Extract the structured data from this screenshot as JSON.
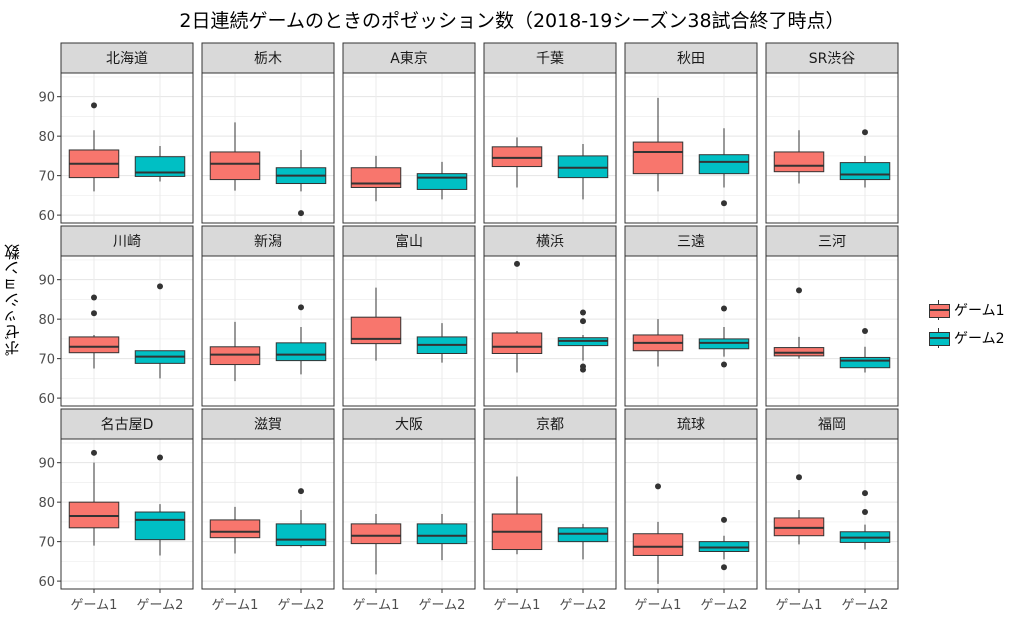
{
  "title": "2日連続ゲームのときのポゼッション数（2018-19シーズン38試合終了時点）",
  "colors": {
    "game1": "#F8766D",
    "game2": "#00BFC4"
  },
  "chart_data": {
    "type": "boxplot",
    "title": "2日連続ゲームのときのポゼッション数（2018-19シーズン38試合終了時点）",
    "xlabel": "",
    "ylabel": "ポゼッション数",
    "ylim": [
      58,
      96
    ],
    "yticks": [
      60,
      70,
      80,
      90
    ],
    "categories": [
      "ゲーム1",
      "ゲーム2"
    ],
    "legend": {
      "title": "",
      "position": "right",
      "entries": [
        "ゲーム1",
        "ゲーム2"
      ]
    },
    "facets": [
      {
        "team": "北海道",
        "boxes": [
          {
            "group": "ゲーム1",
            "min": 66,
            "q1": 69.5,
            "median": 73,
            "q3": 76.5,
            "max": 81.5,
            "outliers": [
              87.8
            ]
          },
          {
            "group": "ゲーム2",
            "min": 68.5,
            "q1": 69.8,
            "median": 70.8,
            "q3": 74.8,
            "max": 77.5,
            "outliers": []
          }
        ]
      },
      {
        "team": "栃木",
        "boxes": [
          {
            "group": "ゲーム1",
            "min": 66.2,
            "q1": 69,
            "median": 73,
            "q3": 76,
            "max": 83.5,
            "outliers": []
          },
          {
            "group": "ゲーム2",
            "min": 66,
            "q1": 68,
            "median": 70,
            "q3": 72,
            "max": 76.5,
            "outliers": [
              60.5
            ]
          }
        ]
      },
      {
        "team": "A東京",
        "boxes": [
          {
            "group": "ゲーム1",
            "min": 63.5,
            "q1": 67,
            "median": 68,
            "q3": 72,
            "max": 75,
            "outliers": []
          },
          {
            "group": "ゲーム2",
            "min": 64,
            "q1": 66.5,
            "median": 69.5,
            "q3": 70.5,
            "max": 73.5,
            "outliers": []
          }
        ]
      },
      {
        "team": "千葉",
        "boxes": [
          {
            "group": "ゲーム1",
            "min": 67,
            "q1": 72.3,
            "median": 74.5,
            "q3": 77.3,
            "max": 79.7,
            "outliers": []
          },
          {
            "group": "ゲーム2",
            "min": 64,
            "q1": 69.5,
            "median": 72,
            "q3": 75,
            "max": 78,
            "outliers": []
          }
        ]
      },
      {
        "team": "秋田",
        "boxes": [
          {
            "group": "ゲーム1",
            "min": 66,
            "q1": 70.5,
            "median": 76,
            "q3": 78.5,
            "max": 89.7,
            "outliers": []
          },
          {
            "group": "ゲーム2",
            "min": 67,
            "q1": 70.5,
            "median": 73.5,
            "q3": 75.3,
            "max": 82,
            "outliers": [
              63
            ]
          }
        ]
      },
      {
        "team": "SR渋谷",
        "boxes": [
          {
            "group": "ゲーム1",
            "min": 68,
            "q1": 71,
            "median": 72.5,
            "q3": 76,
            "max": 81.5,
            "outliers": []
          },
          {
            "group": "ゲーム2",
            "min": 67,
            "q1": 69,
            "median": 70.3,
            "q3": 73.3,
            "max": 75,
            "outliers": [
              81
            ]
          }
        ]
      },
      {
        "team": "川崎",
        "boxes": [
          {
            "group": "ゲーム1",
            "min": 67.5,
            "q1": 71.5,
            "median": 73,
            "q3": 75.5,
            "max": 76,
            "outliers": [
              81.5,
              85.5
            ]
          },
          {
            "group": "ゲーム2",
            "min": 65,
            "q1": 68.8,
            "median": 70.5,
            "q3": 72,
            "max": 72,
            "outliers": [
              88.3
            ]
          }
        ]
      },
      {
        "team": "新潟",
        "boxes": [
          {
            "group": "ゲーム1",
            "min": 64.3,
            "q1": 68.5,
            "median": 71,
            "q3": 73,
            "max": 79.3,
            "outliers": []
          },
          {
            "group": "ゲーム2",
            "min": 66,
            "q1": 69.5,
            "median": 71,
            "q3": 74,
            "max": 78,
            "outliers": [
              83
            ]
          }
        ]
      },
      {
        "team": "富山",
        "boxes": [
          {
            "group": "ゲーム1",
            "min": 69.5,
            "q1": 73.8,
            "median": 75,
            "q3": 80.5,
            "max": 88,
            "outliers": []
          },
          {
            "group": "ゲーム2",
            "min": 69,
            "q1": 71.3,
            "median": 73.5,
            "q3": 75.5,
            "max": 79,
            "outliers": []
          }
        ]
      },
      {
        "team": "横浜",
        "boxes": [
          {
            "group": "ゲーム1",
            "min": 66.5,
            "q1": 71.3,
            "median": 73,
            "q3": 76.5,
            "max": 77,
            "outliers": [
              94
            ]
          },
          {
            "group": "ゲーム2",
            "min": 69.5,
            "q1": 73.3,
            "median": 74.5,
            "q3": 75.3,
            "max": 76,
            "outliers": [
              67.2,
              68,
              79.5,
              81.7
            ]
          }
        ]
      },
      {
        "team": "三遠",
        "boxes": [
          {
            "group": "ゲーム1",
            "min": 68,
            "q1": 72,
            "median": 74,
            "q3": 76,
            "max": 80,
            "outliers": []
          },
          {
            "group": "ゲーム2",
            "min": 70.5,
            "q1": 72.5,
            "median": 74,
            "q3": 75,
            "max": 78,
            "outliers": [
              68.5,
              82.7
            ]
          }
        ]
      },
      {
        "team": "三河",
        "boxes": [
          {
            "group": "ゲーム1",
            "min": 70,
            "q1": 70.7,
            "median": 71.5,
            "q3": 72.8,
            "max": 75.5,
            "outliers": [
              87.3
            ]
          },
          {
            "group": "ゲーム2",
            "min": 66.5,
            "q1": 67.7,
            "median": 69.5,
            "q3": 70.3,
            "max": 73,
            "outliers": [
              77
            ]
          }
        ]
      },
      {
        "team": "名古屋D",
        "boxes": [
          {
            "group": "ゲーム1",
            "min": 69,
            "q1": 73.5,
            "median": 76.5,
            "q3": 80,
            "max": 90,
            "outliers": [
              92.5
            ]
          },
          {
            "group": "ゲーム2",
            "min": 66.5,
            "q1": 70.5,
            "median": 75.5,
            "q3": 77.5,
            "max": 79.5,
            "outliers": [
              91.3
            ]
          }
        ]
      },
      {
        "team": "滋賀",
        "boxes": [
          {
            "group": "ゲーム1",
            "min": 67,
            "q1": 71,
            "median": 72.5,
            "q3": 75.5,
            "max": 78.8,
            "outliers": []
          },
          {
            "group": "ゲーム2",
            "min": 68.5,
            "q1": 69,
            "median": 70.5,
            "q3": 74.5,
            "max": 78,
            "outliers": [
              82.8
            ]
          }
        ]
      },
      {
        "team": "大阪",
        "boxes": [
          {
            "group": "ゲーム1",
            "min": 61.7,
            "q1": 69.5,
            "median": 71.5,
            "q3": 74.5,
            "max": 77,
            "outliers": []
          },
          {
            "group": "ゲーム2",
            "min": 65.3,
            "q1": 69.5,
            "median": 71.5,
            "q3": 74.5,
            "max": 77,
            "outliers": []
          }
        ]
      },
      {
        "team": "京都",
        "boxes": [
          {
            "group": "ゲーム1",
            "min": 66.8,
            "q1": 68,
            "median": 72.5,
            "q3": 77,
            "max": 86.5,
            "outliers": []
          },
          {
            "group": "ゲーム2",
            "min": 65.5,
            "q1": 70,
            "median": 72,
            "q3": 73.5,
            "max": 74.5,
            "outliers": []
          }
        ]
      },
      {
        "team": "琉球",
        "boxes": [
          {
            "group": "ゲーム1",
            "min": 59.3,
            "q1": 66.5,
            "median": 68.7,
            "q3": 72,
            "max": 75,
            "outliers": [
              84
            ]
          },
          {
            "group": "ゲーム2",
            "min": 65.5,
            "q1": 67.5,
            "median": 68.5,
            "q3": 70,
            "max": 71.5,
            "outliers": [
              63.5,
              75.5
            ]
          }
        ]
      },
      {
        "team": "福岡",
        "boxes": [
          {
            "group": "ゲーム1",
            "min": 69.3,
            "q1": 71.5,
            "median": 73.5,
            "q3": 76,
            "max": 78,
            "outliers": [
              86.3
            ]
          },
          {
            "group": "ゲーム2",
            "min": 68,
            "q1": 69.8,
            "median": 71,
            "q3": 72.5,
            "max": 74.3,
            "outliers": [
              77.5,
              82.3
            ]
          }
        ]
      }
    ]
  }
}
